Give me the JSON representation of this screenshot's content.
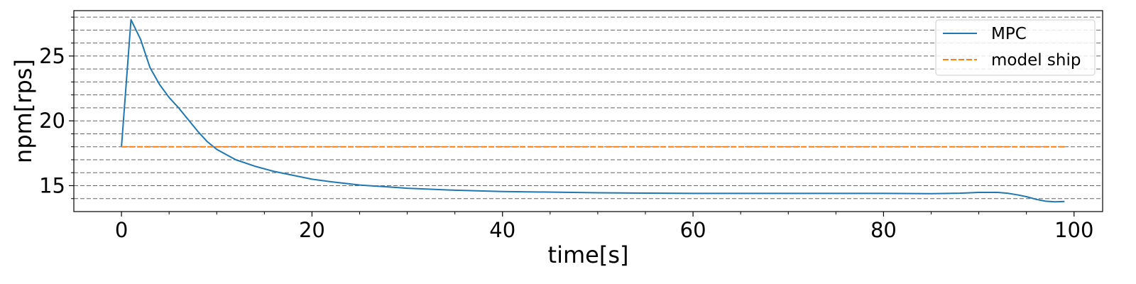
{
  "chart_data": {
    "type": "line",
    "xlabel": "time[s]",
    "ylabel": "npm[rps]",
    "xlim": [
      -5,
      103
    ],
    "ylim": [
      13,
      28.5
    ],
    "xticks": [
      0,
      20,
      40,
      60,
      80,
      100
    ],
    "xtick_labels": [
      "0",
      "20",
      "40",
      "60",
      "80",
      "100"
    ],
    "xminor_ticks": [
      5,
      10,
      15,
      25,
      30,
      35,
      45,
      50,
      55,
      65,
      70,
      75,
      85,
      90,
      95
    ],
    "yticks": [
      15,
      20,
      25
    ],
    "ytick_labels": [
      "15",
      "20",
      "25"
    ],
    "yminor_ticks": [
      14,
      16,
      17,
      18,
      19,
      21,
      22,
      23,
      24,
      26,
      27,
      28
    ],
    "grid": "horizontal dashed lines at major and minor y ticks",
    "legend_position": "top-right",
    "series": [
      {
        "name": "MPC",
        "color": "#1f77b4",
        "style": "solid",
        "x": [
          0,
          1,
          2,
          3,
          4,
          5,
          6,
          7,
          8,
          9,
          10,
          11,
          12,
          14,
          16,
          18,
          20,
          22,
          25,
          28,
          30,
          35,
          40,
          50,
          60,
          70,
          80,
          85,
          88,
          90,
          92,
          93,
          94,
          95,
          96,
          97,
          98,
          99
        ],
        "y": [
          18.0,
          27.8,
          26.3,
          24.1,
          22.8,
          21.8,
          21.0,
          20.1,
          19.2,
          18.4,
          17.8,
          17.4,
          17.0,
          16.5,
          16.1,
          15.8,
          15.5,
          15.3,
          15.05,
          14.9,
          14.8,
          14.65,
          14.55,
          14.45,
          14.4,
          14.4,
          14.4,
          14.38,
          14.42,
          14.48,
          14.48,
          14.42,
          14.3,
          14.15,
          13.95,
          13.8,
          13.75,
          13.78
        ]
      },
      {
        "name": "model ship",
        "color": "#ff7f0e",
        "style": "dashed",
        "x": [
          0,
          99
        ],
        "y": [
          18.0,
          18.0
        ]
      }
    ]
  }
}
